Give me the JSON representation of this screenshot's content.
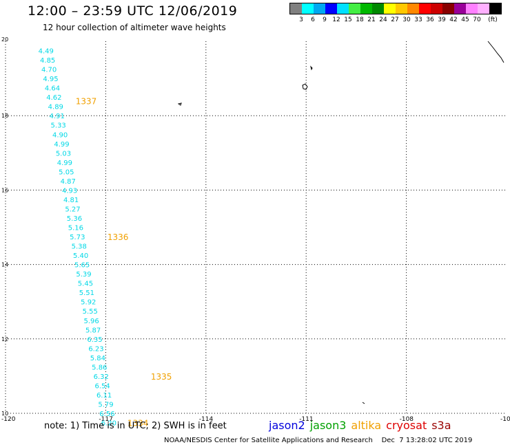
{
  "header": {
    "title": "12:00 – 23:59 UTC 12/06/2019",
    "subtitle": "12 hour collection of altimeter wave heights"
  },
  "legend": {
    "colors": [
      "#808080",
      "#00ffff",
      "#00aaff",
      "#0000ff",
      "#00ffff",
      "#44ee44",
      "#00bb00",
      "#008800",
      "#ffff00",
      "#ffcc00",
      "#ff8800",
      "#ff0000",
      "#cc0000",
      "#880000",
      "#990099",
      "#ff88ff",
      "#ffaaff",
      "#000000"
    ],
    "colors_fixed": [
      "#808080",
      "#00ffff",
      "#00a8f0",
      "#0000ff",
      "#00e0ff",
      "#44ee44",
      "#00b800",
      "#008800",
      "#ffff00",
      "#ffc800",
      "#ff8800",
      "#ff0000",
      "#cc0000",
      "#880000",
      "#990099",
      "#ff80ff",
      "#ffb0ff",
      "#000000"
    ],
    "labels": [
      "3",
      "6",
      "9",
      "12",
      "15",
      "18",
      "21",
      "24",
      "27",
      "30",
      "33",
      "36",
      "39",
      "42",
      "45",
      "70",
      "(ft)"
    ]
  },
  "map": {
    "lon_ticks": [
      "-120",
      "-117",
      "-114",
      "-111",
      "-108",
      "-10"
    ],
    "lat_ticks": [
      "20",
      "18",
      "16",
      "14",
      "12",
      "10"
    ],
    "pass_labels": [
      "1337",
      "1336",
      "1335",
      "1334"
    ],
    "wave_heights": [
      {
        "lat": 19.75,
        "lon": -118.77,
        "swh": "4.49"
      },
      {
        "lat": 19.5,
        "lon": -118.72,
        "swh": "4.85"
      },
      {
        "lat": 19.25,
        "lon": -118.68,
        "swh": "4.70"
      },
      {
        "lat": 19.0,
        "lon": -118.63,
        "swh": "4.95"
      },
      {
        "lat": 18.75,
        "lon": -118.58,
        "swh": "4.64"
      },
      {
        "lat": 18.5,
        "lon": -118.53,
        "swh": "4.62"
      },
      {
        "lat": 18.25,
        "lon": -118.48,
        "swh": "4.89"
      },
      {
        "lat": 18.0,
        "lon": -118.44,
        "swh": "4.91"
      },
      {
        "lat": 17.75,
        "lon": -118.4,
        "swh": "5.33"
      },
      {
        "lat": 17.5,
        "lon": -118.35,
        "swh": "4.90"
      },
      {
        "lat": 17.25,
        "lon": -118.3,
        "swh": "4.99"
      },
      {
        "lat": 17.0,
        "lon": -118.25,
        "swh": "5.03"
      },
      {
        "lat": 16.75,
        "lon": -118.21,
        "swh": "4.99"
      },
      {
        "lat": 16.5,
        "lon": -118.16,
        "swh": "5.05"
      },
      {
        "lat": 16.25,
        "lon": -118.11,
        "swh": "4.87"
      },
      {
        "lat": 16.0,
        "lon": -118.06,
        "swh": "4.93"
      },
      {
        "lat": 15.75,
        "lon": -118.02,
        "swh": "4.81"
      },
      {
        "lat": 15.5,
        "lon": -117.97,
        "swh": "5.27"
      },
      {
        "lat": 15.25,
        "lon": -117.92,
        "swh": "5.36"
      },
      {
        "lat": 15.0,
        "lon": -117.88,
        "swh": "5.16"
      },
      {
        "lat": 14.75,
        "lon": -117.83,
        "swh": "5.73"
      },
      {
        "lat": 14.5,
        "lon": -117.78,
        "swh": "5.38"
      },
      {
        "lat": 14.25,
        "lon": -117.73,
        "swh": "5.40"
      },
      {
        "lat": 14.0,
        "lon": -117.69,
        "swh": "5.65"
      },
      {
        "lat": 13.75,
        "lon": -117.64,
        "swh": "5.39"
      },
      {
        "lat": 13.5,
        "lon": -117.59,
        "swh": "5.45"
      },
      {
        "lat": 13.25,
        "lon": -117.55,
        "swh": "5.51"
      },
      {
        "lat": 13.0,
        "lon": -117.5,
        "swh": "5.92"
      },
      {
        "lat": 12.75,
        "lon": -117.45,
        "swh": "5.55"
      },
      {
        "lat": 12.5,
        "lon": -117.41,
        "swh": "5.96"
      },
      {
        "lat": 12.25,
        "lon": -117.36,
        "swh": "5.87"
      },
      {
        "lat": 12.0,
        "lon": -117.31,
        "swh": "6.35"
      },
      {
        "lat": 11.75,
        "lon": -117.27,
        "swh": "6.23"
      },
      {
        "lat": 11.5,
        "lon": -117.22,
        "swh": "5.84"
      },
      {
        "lat": 11.25,
        "lon": -117.17,
        "swh": "5.86"
      },
      {
        "lat": 11.0,
        "lon": -117.12,
        "swh": "6.32"
      },
      {
        "lat": 10.75,
        "lon": -117.08,
        "swh": "6.54"
      },
      {
        "lat": 10.5,
        "lon": -117.03,
        "swh": "6.11"
      },
      {
        "lat": 10.25,
        "lon": -116.98,
        "swh": "5.79"
      },
      {
        "lat": 10.0,
        "lon": -116.94,
        "swh": "6.56"
      },
      {
        "lat": 9.75,
        "lon": -116.89,
        "swh": "6.20"
      }
    ]
  },
  "note": "note: 1) Time is in UTC; 2) SWH is in feet",
  "satellites": [
    {
      "name": "jason2",
      "color": "#0000dd"
    },
    {
      "name": "jason3",
      "color": "#00a000"
    },
    {
      "name": "altika",
      "color": "#f0a000"
    },
    {
      "name": "cryosat",
      "color": "#dd0000"
    },
    {
      "name": "s3a",
      "color": "#990000"
    }
  ],
  "footer": "NOAA/NESDIS Center for Satellite Applications and Research    Dec  7 13:28:02 UTC 2019"
}
